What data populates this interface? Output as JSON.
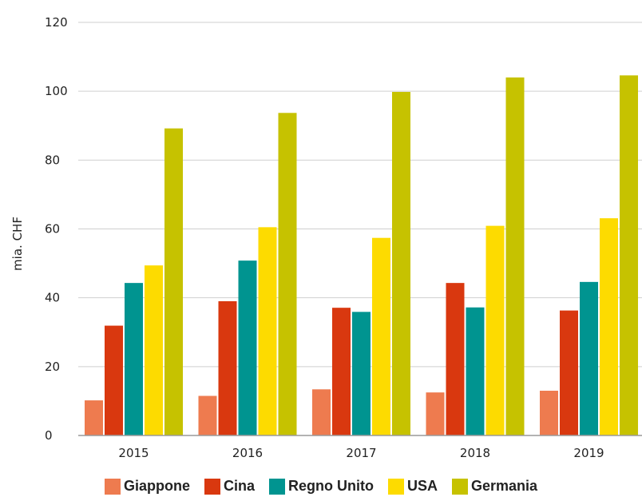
{
  "chart_data": {
    "type": "bar",
    "categories": [
      "2015",
      "2016",
      "2017",
      "2018",
      "2019"
    ],
    "series": [
      {
        "name": "Giappone",
        "color": "#EE7B4F",
        "values": [
          10.2,
          11.5,
          13.4,
          12.5,
          13.0
        ]
      },
      {
        "name": "Cina",
        "color": "#D9380F",
        "values": [
          31.9,
          39.0,
          37.1,
          44.3,
          36.3
        ]
      },
      {
        "name": "Regno Unito",
        "color": "#009490",
        "values": [
          44.3,
          50.8,
          35.9,
          37.2,
          44.6
        ]
      },
      {
        "name": "USA",
        "color": "#FDDB00",
        "values": [
          49.4,
          60.5,
          57.4,
          60.9,
          63.1
        ]
      },
      {
        "name": "Germania",
        "color": "#C6C200",
        "values": [
          89.2,
          93.7,
          99.8,
          104.0,
          104.6
        ]
      }
    ],
    "ylabel": "mia. CHF",
    "xlabel": "",
    "ylim": [
      0,
      120
    ],
    "yticks": [
      "0",
      "20",
      "40",
      "60",
      "80",
      "100",
      "120"
    ],
    "grid": true,
    "legend_position": "bottom"
  }
}
